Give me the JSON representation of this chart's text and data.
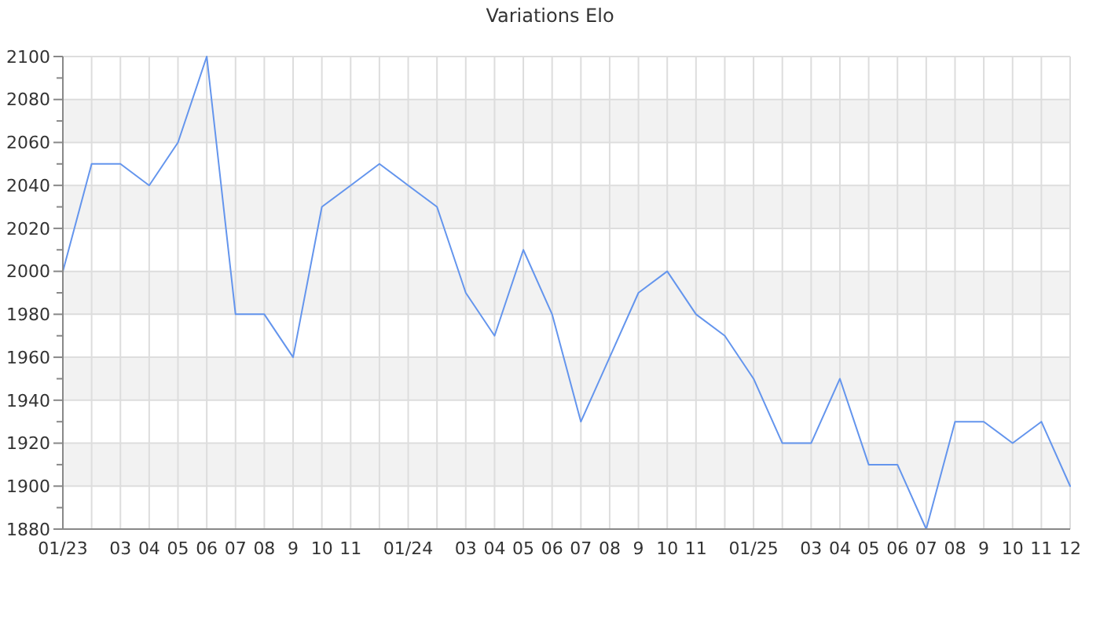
{
  "chart_data": {
    "type": "line",
    "title": "Variations Elo",
    "categories": [
      "01/23",
      null,
      "03",
      "04",
      "05",
      "06",
      "07",
      "08",
      "9",
      "10",
      "11",
      null,
      "01/24",
      null,
      "03",
      "04",
      "05",
      "06",
      "07",
      "08",
      "9",
      "10",
      "11",
      null,
      "01/25",
      null,
      "03",
      "04",
      "05",
      "06",
      "07",
      "08",
      "9",
      "10",
      "11",
      "12"
    ],
    "values": [
      2000,
      2050,
      2050,
      2040,
      2060,
      2100,
      1980,
      1980,
      1960,
      2030,
      2040,
      2050,
      2040,
      2030,
      1990,
      1970,
      2010,
      1980,
      1930,
      1960,
      1990,
      2000,
      1980,
      1970,
      1950,
      1920,
      1920,
      1950,
      1910,
      1910,
      1880,
      1930,
      1930,
      1920,
      1930,
      1900
    ],
    "color": "#6495ed",
    "ylim": [
      1880,
      2100
    ],
    "yticks": [
      1880,
      {
        "value": 1890,
        "label": null
      },
      1900,
      {
        "value": 1910,
        "label": null
      },
      1920,
      {
        "value": 1930,
        "label": null
      },
      1940,
      {
        "value": 1950,
        "label": null
      },
      1960,
      {
        "value": 1970,
        "label": null
      },
      1980,
      {
        "value": 1990,
        "label": null
      },
      2000,
      {
        "value": 2010,
        "label": null
      },
      2020,
      {
        "value": 2030,
        "label": null
      },
      2040,
      {
        "value": 2050,
        "label": null
      },
      2060,
      {
        "value": 2070,
        "label": null
      },
      2080,
      {
        "value": 2090,
        "label": null
      },
      2100
    ],
    "grid": true
  }
}
